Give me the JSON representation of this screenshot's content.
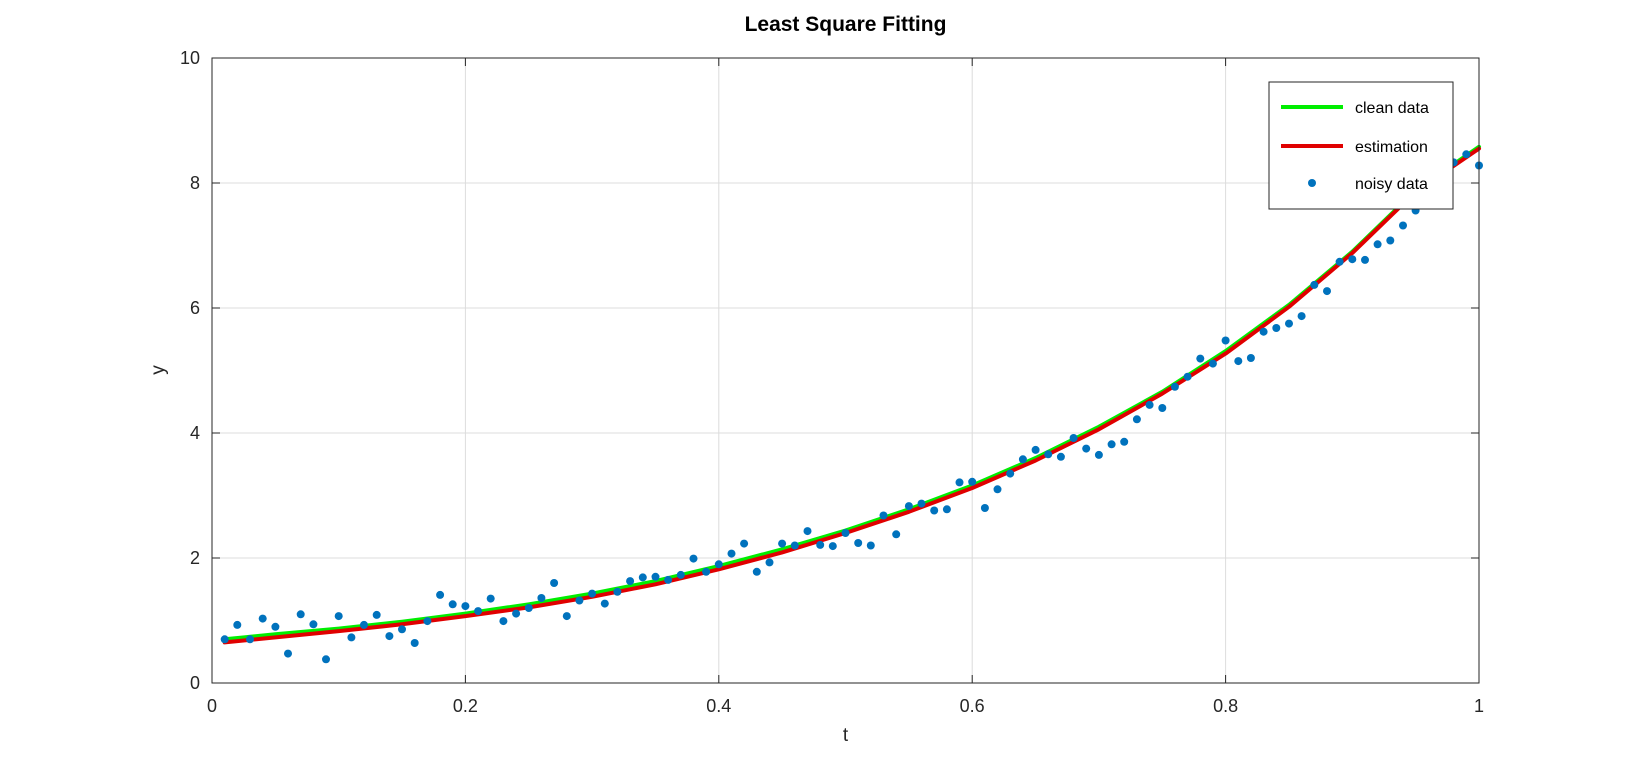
{
  "chart_data": {
    "type": "line",
    "title": "Least Square Fitting",
    "xlabel": "t",
    "ylabel": "y",
    "xlim": [
      0,
      1
    ],
    "ylim": [
      0,
      10
    ],
    "xticks": [
      0,
      0.2,
      0.4,
      0.6,
      0.8,
      1
    ],
    "xtick_labels": [
      "0",
      "0.2",
      "0.4",
      "0.6",
      "0.8",
      "1"
    ],
    "yticks": [
      0,
      2,
      4,
      6,
      8,
      10
    ],
    "ytick_labels": [
      "0",
      "2",
      "4",
      "6",
      "8",
      "10"
    ],
    "grid": true,
    "legend_position": "top-right",
    "series": [
      {
        "name": "clean data",
        "kind": "line",
        "color": "#00ee00",
        "x": [
          0.01,
          0.05,
          0.1,
          0.15,
          0.2,
          0.25,
          0.3,
          0.35,
          0.4,
          0.45,
          0.5,
          0.55,
          0.6,
          0.65,
          0.7,
          0.75,
          0.8,
          0.85,
          0.9,
          0.95,
          1.0
        ],
        "y": [
          0.7,
          0.78,
          0.87,
          0.98,
          1.11,
          1.26,
          1.43,
          1.63,
          1.87,
          2.14,
          2.44,
          2.78,
          3.16,
          3.6,
          4.1,
          4.66,
          5.31,
          6.05,
          6.9,
          7.88,
          8.58
        ]
      },
      {
        "name": "estimation",
        "kind": "line",
        "color": "#e00000",
        "x": [
          0.01,
          0.05,
          0.1,
          0.15,
          0.2,
          0.25,
          0.3,
          0.35,
          0.4,
          0.45,
          0.5,
          0.55,
          0.6,
          0.65,
          0.7,
          0.75,
          0.8,
          0.85,
          0.9,
          0.95,
          1.0
        ],
        "y": [
          0.65,
          0.73,
          0.83,
          0.94,
          1.07,
          1.21,
          1.38,
          1.58,
          1.82,
          2.09,
          2.4,
          2.74,
          3.12,
          3.56,
          4.06,
          4.63,
          5.27,
          6.02,
          6.88,
          7.86,
          8.55
        ]
      },
      {
        "name": "noisy data",
        "kind": "scatter",
        "color": "#0072bd",
        "x": [
          0.01,
          0.02,
          0.03,
          0.04,
          0.05,
          0.06,
          0.07,
          0.08,
          0.09,
          0.1,
          0.11,
          0.12,
          0.13,
          0.14,
          0.15,
          0.16,
          0.17,
          0.18,
          0.19,
          0.2,
          0.21,
          0.22,
          0.23,
          0.24,
          0.25,
          0.26,
          0.27,
          0.28,
          0.29,
          0.3,
          0.31,
          0.32,
          0.33,
          0.34,
          0.35,
          0.36,
          0.37,
          0.38,
          0.39,
          0.4,
          0.41,
          0.42,
          0.43,
          0.44,
          0.45,
          0.46,
          0.47,
          0.48,
          0.49,
          0.5,
          0.51,
          0.52,
          0.53,
          0.54,
          0.55,
          0.56,
          0.57,
          0.58,
          0.59,
          0.6,
          0.61,
          0.62,
          0.63,
          0.64,
          0.65,
          0.66,
          0.67,
          0.68,
          0.69,
          0.7,
          0.71,
          0.72,
          0.73,
          0.74,
          0.75,
          0.76,
          0.77,
          0.78,
          0.79,
          0.8,
          0.81,
          0.82,
          0.83,
          0.84,
          0.85,
          0.86,
          0.87,
          0.88,
          0.89,
          0.9,
          0.91,
          0.92,
          0.93,
          0.94,
          0.95,
          0.96,
          0.97,
          0.98,
          0.99,
          1.0
        ],
        "y": [
          0.7,
          0.93,
          0.7,
          1.03,
          0.9,
          0.47,
          1.1,
          0.94,
          0.38,
          1.07,
          0.73,
          0.93,
          1.09,
          0.75,
          0.86,
          0.64,
          0.99,
          1.41,
          1.26,
          1.23,
          1.15,
          1.35,
          0.99,
          1.11,
          1.2,
          1.36,
          1.6,
          1.07,
          1.32,
          1.43,
          1.27,
          1.46,
          1.63,
          1.69,
          1.7,
          1.65,
          1.73,
          1.99,
          1.78,
          1.9,
          2.07,
          2.23,
          1.78,
          1.93,
          2.23,
          2.2,
          2.43,
          2.21,
          2.19,
          2.4,
          2.24,
          2.2,
          2.68,
          2.38,
          2.83,
          2.87,
          2.76,
          2.78,
          3.21,
          3.22,
          2.8,
          3.1,
          3.35,
          3.58,
          3.73,
          3.66,
          3.62,
          3.92,
          3.75,
          3.65,
          3.82,
          3.86,
          4.22,
          4.45,
          4.4,
          4.74,
          4.9,
          5.19,
          5.11,
          5.48,
          5.15,
          5.2,
          5.62,
          5.68,
          5.75,
          5.87,
          6.37,
          6.27,
          6.74,
          6.78,
          6.77,
          7.02,
          7.08,
          7.32,
          7.56,
          7.97,
          8.12,
          8.33,
          8.46,
          8.28
        ]
      }
    ]
  }
}
